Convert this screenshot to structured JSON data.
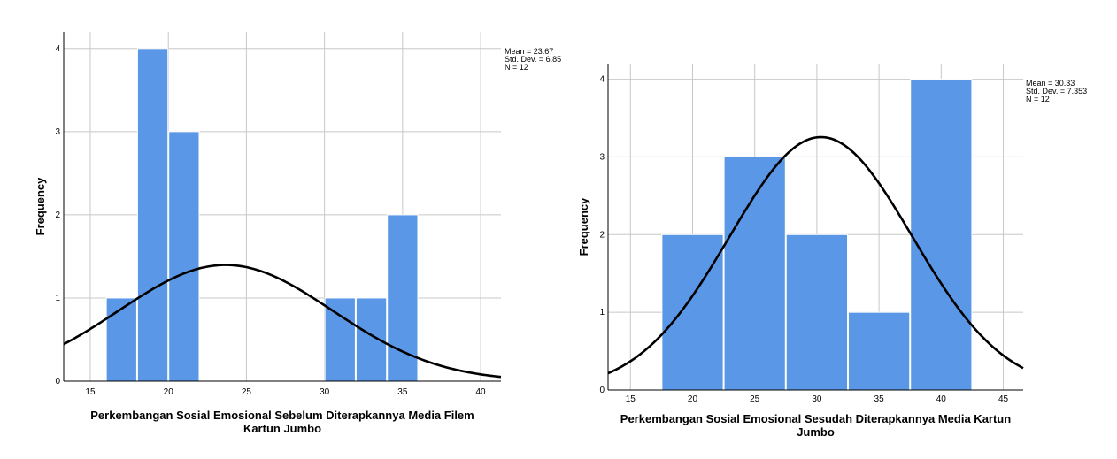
{
  "chart_data": [
    {
      "type": "bar",
      "subtype": "histogram",
      "xlabel": "Perkembangan Sosial Emosional Sebelum Diterapkannya Media Filem Kartun Jumbo",
      "xlabel_lines": [
        "Perkembangan Sosial Emosional Sebelum Diterapkannya Media Filem",
        "Kartun Jumbo"
      ],
      "ylabel": "Frequency",
      "xlim": [
        13.3,
        41.3
      ],
      "ylim": [
        0,
        4.2
      ],
      "x_ticks": [
        15,
        20,
        25,
        30,
        35,
        40
      ],
      "y_ticks": [
        0,
        1,
        2,
        3,
        4
      ],
      "bins": [
        {
          "from": 16,
          "to": 18,
          "count": 1
        },
        {
          "from": 18,
          "to": 20,
          "count": 4
        },
        {
          "from": 20,
          "to": 22,
          "count": 3
        },
        {
          "from": 22,
          "to": 24,
          "count": 0
        },
        {
          "from": 24,
          "to": 26,
          "count": 0
        },
        {
          "from": 26,
          "to": 28,
          "count": 0
        },
        {
          "from": 28,
          "to": 30,
          "count": 0
        },
        {
          "from": 30,
          "to": 32,
          "count": 1
        },
        {
          "from": 32,
          "to": 34,
          "count": 1
        },
        {
          "from": 34,
          "to": 36,
          "count": 2
        }
      ],
      "normal_curve": {
        "mean": 23.67,
        "std": 6.853,
        "n": 12,
        "bin_width": 2
      },
      "stats_text": [
        "Mean = 23.67",
        "Std. Dev. = 6.853",
        "N = 12"
      ],
      "grid": true,
      "bar_color": "#5a97e6",
      "curve_color": "#000000"
    },
    {
      "type": "bar",
      "subtype": "histogram",
      "xlabel": "Perkembangan Sosial Emosional Sesudah Diterapkannya Media Kartun Jumbo",
      "xlabel_lines": [
        "Perkembangan Sosial Emosional Sesudah Diterapkannya Media Kartun",
        "Jumbo"
      ],
      "ylabel": "Frequency",
      "xlim": [
        13.2,
        46.6
      ],
      "ylim": [
        0,
        4.2
      ],
      "x_ticks": [
        15,
        20,
        25,
        30,
        35,
        40,
        45
      ],
      "y_ticks": [
        0,
        1,
        2,
        3,
        4
      ],
      "bins": [
        {
          "from": 17.5,
          "to": 22.5,
          "count": 2
        },
        {
          "from": 22.5,
          "to": 27.5,
          "count": 3
        },
        {
          "from": 27.5,
          "to": 32.5,
          "count": 2
        },
        {
          "from": 32.5,
          "to": 37.5,
          "count": 1
        },
        {
          "from": 37.5,
          "to": 42.5,
          "count": 4
        }
      ],
      "normal_curve": {
        "mean": 30.33,
        "std": 7.353,
        "n": 12,
        "bin_width": 5
      },
      "stats_text": [
        "Mean = 30.33",
        "Std. Dev. = 7.353",
        "N = 12"
      ],
      "grid": true,
      "bar_color": "#5a97e6",
      "curve_color": "#000000"
    }
  ]
}
